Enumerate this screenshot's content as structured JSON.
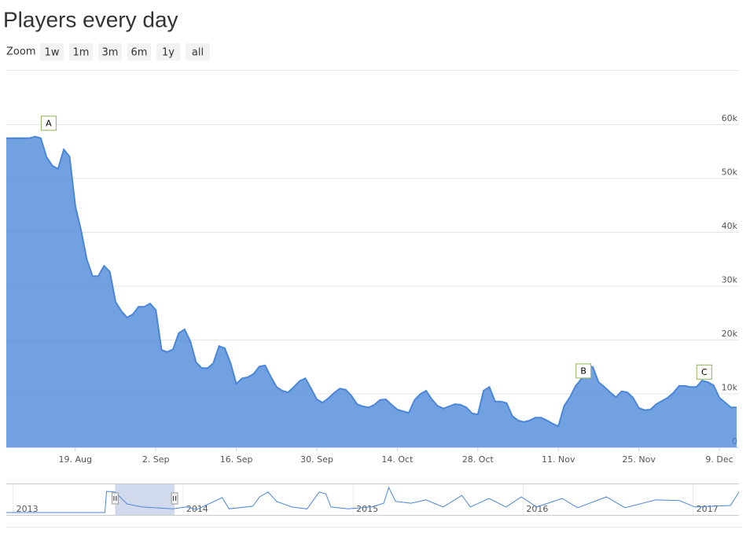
{
  "chart_data": {
    "type": "area",
    "title": "Players every day",
    "range_selector": {
      "label": "Zoom",
      "buttons": [
        "1w",
        "1m",
        "3m",
        "6m",
        "1y",
        "all"
      ]
    },
    "x": [
      "08-07",
      "08-08",
      "08-09",
      "08-10",
      "08-11",
      "08-12",
      "08-13",
      "08-14",
      "08-15",
      "08-16",
      "08-17",
      "08-18",
      "08-19",
      "08-20",
      "08-21",
      "08-22",
      "08-23",
      "08-24",
      "08-25",
      "08-26",
      "08-27",
      "08-28",
      "08-29",
      "08-30",
      "08-31",
      "09-01",
      "09-02",
      "09-03",
      "09-04",
      "09-05",
      "09-06",
      "09-07",
      "09-08",
      "09-09",
      "09-10",
      "09-11",
      "09-12",
      "09-13",
      "09-14",
      "09-15",
      "09-16",
      "09-17",
      "09-18",
      "09-19",
      "09-20",
      "09-21",
      "09-22",
      "09-23",
      "09-24",
      "09-25",
      "09-26",
      "09-27",
      "09-28",
      "09-29",
      "09-30",
      "10-01",
      "10-02",
      "10-03",
      "10-04",
      "10-05",
      "10-06",
      "10-07",
      "10-08",
      "10-09",
      "10-10",
      "10-11",
      "10-12",
      "10-13",
      "10-14",
      "10-15",
      "10-16",
      "10-17",
      "10-18",
      "10-19",
      "10-20",
      "10-21",
      "10-22",
      "10-23",
      "10-24",
      "10-25",
      "10-26",
      "10-27",
      "10-28",
      "10-29",
      "10-30",
      "10-31",
      "11-01",
      "11-02",
      "11-03",
      "11-04",
      "11-05",
      "11-06",
      "11-07",
      "11-08",
      "11-09",
      "11-10",
      "11-11",
      "11-12",
      "11-13",
      "11-14",
      "11-15",
      "11-16",
      "11-17",
      "11-18",
      "11-19",
      "11-20",
      "11-21",
      "11-22",
      "11-23",
      "11-24",
      "11-25",
      "11-26",
      "11-27",
      "11-28",
      "11-29",
      "11-30",
      "12-01",
      "12-02",
      "12-03",
      "12-04",
      "12-05",
      "12-06",
      "12-07",
      "12-08",
      "12-09",
      "12-10",
      "12-11",
      "12-12"
    ],
    "values": [
      57400,
      57400,
      57400,
      57400,
      57400,
      57700,
      57400,
      53900,
      52300,
      51700,
      55300,
      54000,
      44800,
      40300,
      34900,
      31800,
      31800,
      33700,
      32600,
      27000,
      25300,
      24100,
      24700,
      26100,
      26100,
      26700,
      25500,
      18100,
      17700,
      18200,
      21200,
      21900,
      19700,
      15800,
      14700,
      14700,
      15600,
      18800,
      18400,
      15600,
      11800,
      12800,
      13000,
      13600,
      15000,
      15200,
      13100,
      11200,
      10500,
      10200,
      11200,
      12300,
      12800,
      10900,
      8900,
      8300,
      9100,
      10100,
      10900,
      10700,
      9600,
      8000,
      7600,
      7400,
      7900,
      8800,
      8900,
      7900,
      7000,
      6700,
      6400,
      8800,
      9900,
      10500,
      8900,
      7700,
      7200,
      7600,
      8000,
      7900,
      7400,
      6300,
      6100,
      10500,
      11200,
      8500,
      8500,
      8200,
      5800,
      5000,
      4700,
      5000,
      5500,
      5500,
      5000,
      4400,
      3900,
      7700,
      9300,
      11400,
      12700,
      15200,
      14900,
      12100,
      11200,
      10200,
      9300,
      10400,
      10200,
      9200,
      7300,
      6900,
      7000,
      8000,
      8600,
      9200,
      10100,
      11400,
      11400,
      11200,
      11200,
      12400,
      12100,
      11500,
      9200,
      8300,
      7400,
      7400
    ],
    "color": "#4a86d8",
    "xlim": [
      "08-07",
      "12-12"
    ],
    "xticks": [
      {
        "value": "08-19",
        "label": "19. Aug"
      },
      {
        "value": "09-02",
        "label": "2. Sep"
      },
      {
        "value": "09-16",
        "label": "16. Sep"
      },
      {
        "value": "09-30",
        "label": "30. Sep"
      },
      {
        "value": "10-14",
        "label": "14. Oct"
      },
      {
        "value": "10-28",
        "label": "28. Oct"
      },
      {
        "value": "11-11",
        "label": "11. Nov"
      },
      {
        "value": "11-25",
        "label": "25. Nov"
      },
      {
        "value": "12-09",
        "label": "9. Dec"
      }
    ],
    "ylim": [
      0,
      60000
    ],
    "yticks": [
      0,
      {
        "value": 10000,
        "label": "10k"
      },
      {
        "value": 20000,
        "label": "20k"
      },
      {
        "value": 30000,
        "label": "30k"
      },
      {
        "value": 40000,
        "label": "40k"
      },
      {
        "value": 50000,
        "label": "50k"
      },
      {
        "value": 60000,
        "label": "60k"
      }
    ],
    "grid": true,
    "flags": [
      {
        "x": "08-13",
        "label": "A"
      },
      {
        "x": "11-14",
        "label": "B"
      },
      {
        "x": "12-05",
        "label": "C"
      }
    ],
    "flag_color": "#8db255",
    "navigator": {
      "x": [
        2012.96,
        2013.54,
        2013.55,
        2013.6,
        2013.67,
        2013.76,
        2013.94,
        2014.02,
        2014.08,
        2014.23,
        2014.27,
        2014.41,
        2014.45,
        2014.5,
        2014.55,
        2014.64,
        2014.73,
        2014.8,
        2014.84,
        2014.87,
        2014.97,
        2015.11,
        2015.18,
        2015.21,
        2015.25,
        2015.34,
        2015.43,
        2015.53,
        2015.64,
        2015.69,
        2015.8,
        2015.9,
        2015.99,
        2016.08,
        2016.23,
        2016.32,
        2016.49,
        2016.6,
        2016.78,
        2016.92,
        2017.01,
        2017.22,
        2017.27
      ],
      "values": [
        0,
        0,
        57000,
        55000,
        23000,
        15000,
        10000,
        15000,
        8000,
        40000,
        10000,
        17000,
        42000,
        55000,
        30000,
        15000,
        10000,
        55000,
        50000,
        15000,
        10000,
        15000,
        25000,
        67000,
        30000,
        25000,
        34000,
        15000,
        46000,
        15000,
        38000,
        15000,
        42000,
        15000,
        38000,
        13000,
        42000,
        13000,
        34000,
        32000,
        15000,
        19000,
        55000
      ],
      "xlim": [
        2012.96,
        2017.27
      ],
      "ylim": [
        0,
        78000
      ],
      "xticks": [
        {
          "value": 2013,
          "label": "2013"
        },
        {
          "value": 2014,
          "label": "2014"
        },
        {
          "value": 2015,
          "label": "2015"
        },
        {
          "value": 2016,
          "label": "2016"
        },
        {
          "value": 2017,
          "label": "2017"
        }
      ],
      "selection": [
        2013.6,
        2013.95
      ]
    }
  }
}
